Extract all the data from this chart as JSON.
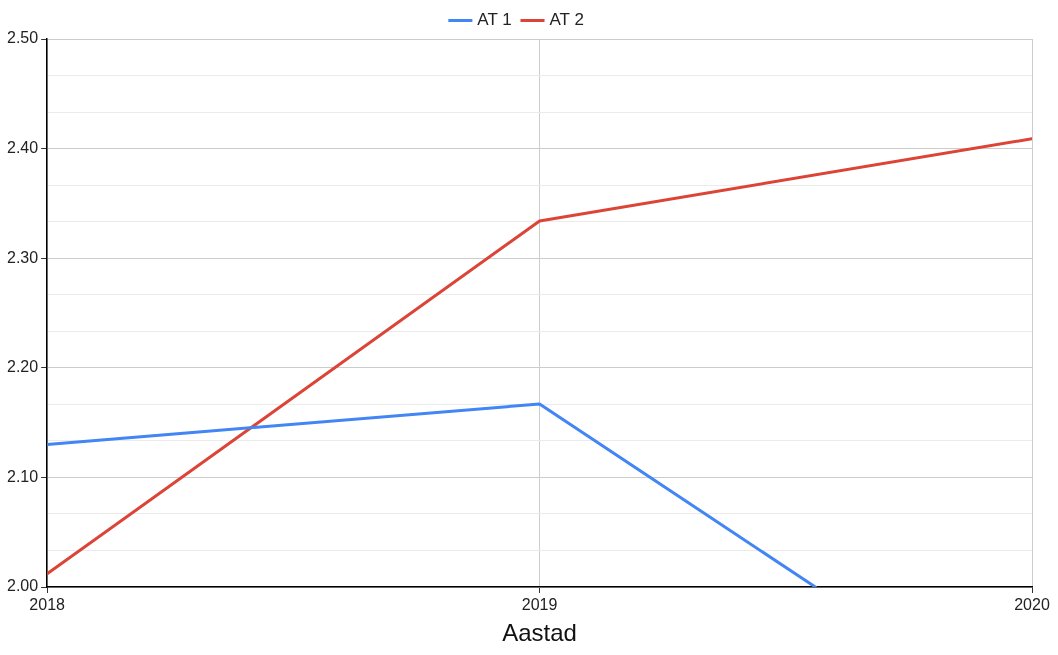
{
  "chart_data": {
    "type": "line",
    "xlabel": "Aastad",
    "x": [
      2018,
      2019,
      2020
    ],
    "series": [
      {
        "name": "AT 1",
        "color": "#4285f4",
        "x": [
          2018,
          2019,
          2019.56
        ],
        "values": [
          2.13,
          2.167,
          2.0
        ]
      },
      {
        "name": "AT 2",
        "color": "#db4437",
        "values": [
          2.012,
          2.334,
          2.409
        ]
      }
    ],
    "xlim": [
      2018,
      2020
    ],
    "xticks": [
      2018,
      2019,
      2020
    ],
    "ylim": [
      2.0,
      2.5
    ],
    "yticks": [
      {
        "value": 2.0,
        "label": "2.00"
      },
      {
        "value": 2.0333,
        "label": null
      },
      {
        "value": 2.0667,
        "label": null
      },
      {
        "value": 2.1,
        "label": "2.10"
      },
      {
        "value": 2.1333,
        "label": null
      },
      {
        "value": 2.1667,
        "label": null
      },
      {
        "value": 2.2,
        "label": "2.20"
      },
      {
        "value": 2.2333,
        "label": null
      },
      {
        "value": 2.2667,
        "label": null
      },
      {
        "value": 2.3,
        "label": "2.30"
      },
      {
        "value": 2.3333,
        "label": null
      },
      {
        "value": 2.3667,
        "label": null
      },
      {
        "value": 2.4,
        "label": "2.40"
      },
      {
        "value": 2.4333,
        "label": null
      },
      {
        "value": 2.4667,
        "label": null
      },
      {
        "value": 2.5,
        "label": "2.50"
      }
    ],
    "grid": true,
    "legend": "top",
    "marker": "none",
    "line_style": "solid"
  }
}
